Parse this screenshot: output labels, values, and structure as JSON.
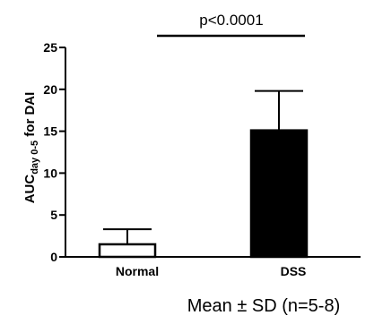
{
  "chart_data": {
    "type": "bar",
    "categories": [
      "Normal",
      "DSS"
    ],
    "values": [
      1.5,
      15.1
    ],
    "errors": [
      1.8,
      4.7
    ],
    "bar_colors": [
      "#ffffff",
      "#000000"
    ],
    "ylabel_main": "AUC",
    "ylabel_sub": "day 0-5",
    "ylabel_rest": " for DAI",
    "ylim": [
      0,
      25
    ],
    "yticks": [
      0,
      5,
      10,
      15,
      20,
      25
    ],
    "significance": "p<0.0001",
    "footnote": "Mean ± SD (n=5-8)"
  }
}
